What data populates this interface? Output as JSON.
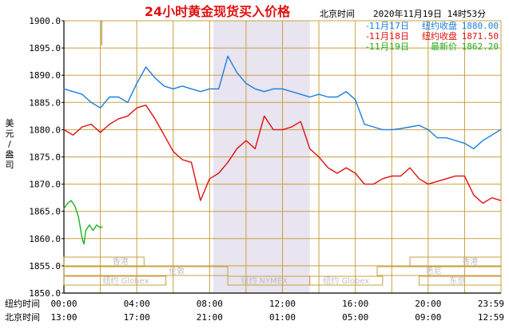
{
  "title": "24小时黄金现货买入价格",
  "header_right": {
    "location_label": "北京时间",
    "datetime": "2020年11月19日 14时53分"
  },
  "y_label": "美元/盎司",
  "legend": [
    {
      "date": "-11月17日",
      "label": "纽约收盘",
      "value": "1880.00",
      "color": "#1a7fe0"
    },
    {
      "date": "-11月18日",
      "label": "纽约收盘",
      "value": "1871.50",
      "color": "#e01010"
    },
    {
      "date": "-11月19日",
      "label": "最新价",
      "value": "1862.20",
      "color": "#20b020"
    }
  ],
  "x_rows": [
    {
      "label": "纽约时间",
      "ticks": [
        "00:00",
        "04:00",
        "08:00",
        "12:00",
        "16:00",
        "20:00",
        "23:59"
      ]
    },
    {
      "label": "北京时间",
      "ticks": [
        "13:00",
        "17:00",
        "21:00",
        "01:00",
        "05:00",
        "09:00",
        "12:59"
      ]
    }
  ],
  "markets": {
    "hongkong_1": "香港",
    "hongkong_2": "香港",
    "newyork_globex_1": "纽约 Globex",
    "london": "伦敦",
    "newyork_nymex": "纽约 NYMEX",
    "newyork_globex_2": "纽约 Globex",
    "sydney": "悉尼",
    "tokyo": "东京"
  },
  "colors": {
    "grid": "#c8a040",
    "background": "#ffffff",
    "nymex_band": "#e8e4f0",
    "tick_text": "#000000",
    "title": "#e01010",
    "market_text": "#bfbfbf"
  },
  "chart_data": {
    "type": "line",
    "x_unit": "New York hours since 00:00",
    "xlim": [
      0,
      24
    ],
    "ylim": [
      1850,
      1900
    ],
    "yticks": [
      "1850.0",
      "1855.0",
      "1860.0",
      "1865.0",
      "1870.0",
      "1875.0",
      "1880.0",
      "1885.0",
      "1890.0",
      "1895.0",
      "1900.0"
    ],
    "series": [
      {
        "name": "11月17日",
        "color": "#1a7fe0",
        "points": [
          [
            0,
            1887.5
          ],
          [
            0.5,
            1887
          ],
          [
            1,
            1886.5
          ],
          [
            1.5,
            1885
          ],
          [
            2,
            1884
          ],
          [
            2.5,
            1886
          ],
          [
            3,
            1886
          ],
          [
            3.5,
            1885
          ],
          [
            4,
            1888.5
          ],
          [
            4.5,
            1891.5
          ],
          [
            5,
            1889.5
          ],
          [
            5.5,
            1888
          ],
          [
            6,
            1887.5
          ],
          [
            6.5,
            1888
          ],
          [
            7,
            1887.5
          ],
          [
            7.5,
            1887
          ],
          [
            8,
            1887.5
          ],
          [
            8.5,
            1887.5
          ],
          [
            9,
            1893.5
          ],
          [
            9.5,
            1890.5
          ],
          [
            10,
            1888.5
          ],
          [
            10.5,
            1887.5
          ],
          [
            11,
            1887
          ],
          [
            11.5,
            1887.5
          ],
          [
            12,
            1887.5
          ],
          [
            12.5,
            1887
          ],
          [
            13,
            1886.5
          ],
          [
            13.5,
            1886
          ],
          [
            14,
            1886.5
          ],
          [
            14.5,
            1886
          ],
          [
            15,
            1886
          ],
          [
            15.5,
            1887
          ],
          [
            16,
            1885.5
          ],
          [
            16.5,
            1881
          ],
          [
            17,
            1880.5
          ],
          [
            17.5,
            1880
          ],
          [
            18,
            1880
          ],
          [
            18.5,
            1880.2
          ],
          [
            19,
            1880.5
          ],
          [
            19.5,
            1880.8
          ],
          [
            20,
            1880
          ],
          [
            20.5,
            1878.5
          ],
          [
            21,
            1878.5
          ],
          [
            21.5,
            1878
          ],
          [
            22,
            1877.5
          ],
          [
            22.5,
            1876.5
          ],
          [
            23,
            1878
          ],
          [
            23.5,
            1879
          ],
          [
            23.98,
            1880
          ]
        ]
      },
      {
        "name": "11月18日",
        "color": "#e01010",
        "points": [
          [
            0,
            1880
          ],
          [
            0.5,
            1879
          ],
          [
            1,
            1880.5
          ],
          [
            1.5,
            1881
          ],
          [
            2,
            1879.5
          ],
          [
            2.5,
            1881
          ],
          [
            3,
            1882
          ],
          [
            3.5,
            1882.5
          ],
          [
            4,
            1884
          ],
          [
            4.5,
            1884.5
          ],
          [
            5,
            1882
          ],
          [
            5.5,
            1879
          ],
          [
            6,
            1876
          ],
          [
            6.5,
            1874.5
          ],
          [
            7,
            1874
          ],
          [
            7.5,
            1867
          ],
          [
            8,
            1871
          ],
          [
            8.5,
            1872
          ],
          [
            9,
            1874
          ],
          [
            9.5,
            1876.5
          ],
          [
            10,
            1878
          ],
          [
            10.5,
            1876.5
          ],
          [
            11,
            1882.5
          ],
          [
            11.5,
            1880
          ],
          [
            12,
            1880
          ],
          [
            12.5,
            1880.5
          ],
          [
            13,
            1881.5
          ],
          [
            13.5,
            1876.5
          ],
          [
            14,
            1875
          ],
          [
            14.5,
            1873
          ],
          [
            15,
            1872
          ],
          [
            15.5,
            1873
          ],
          [
            16,
            1872
          ],
          [
            16.5,
            1870
          ],
          [
            17,
            1870
          ],
          [
            17.5,
            1871
          ],
          [
            18,
            1871.5
          ],
          [
            18.5,
            1871.5
          ],
          [
            19,
            1873
          ],
          [
            19.5,
            1871
          ],
          [
            20,
            1870
          ],
          [
            20.5,
            1870.5
          ],
          [
            21,
            1871
          ],
          [
            21.5,
            1871.5
          ],
          [
            22,
            1871.5
          ],
          [
            22.5,
            1868
          ],
          [
            23,
            1866.5
          ],
          [
            23.5,
            1867.5
          ],
          [
            23.98,
            1867
          ]
        ]
      },
      {
        "name": "11月19日",
        "color": "#20b020",
        "points": [
          [
            0,
            1865.5
          ],
          [
            0.2,
            1866.5
          ],
          [
            0.4,
            1867
          ],
          [
            0.6,
            1866
          ],
          [
            0.8,
            1864
          ],
          [
            1,
            1860
          ],
          [
            1.1,
            1859
          ],
          [
            1.2,
            1861.5
          ],
          [
            1.4,
            1862.5
          ],
          [
            1.6,
            1861.5
          ],
          [
            1.8,
            1862.5
          ],
          [
            2,
            1862
          ],
          [
            2.1,
            1862.2
          ]
        ]
      }
    ]
  }
}
